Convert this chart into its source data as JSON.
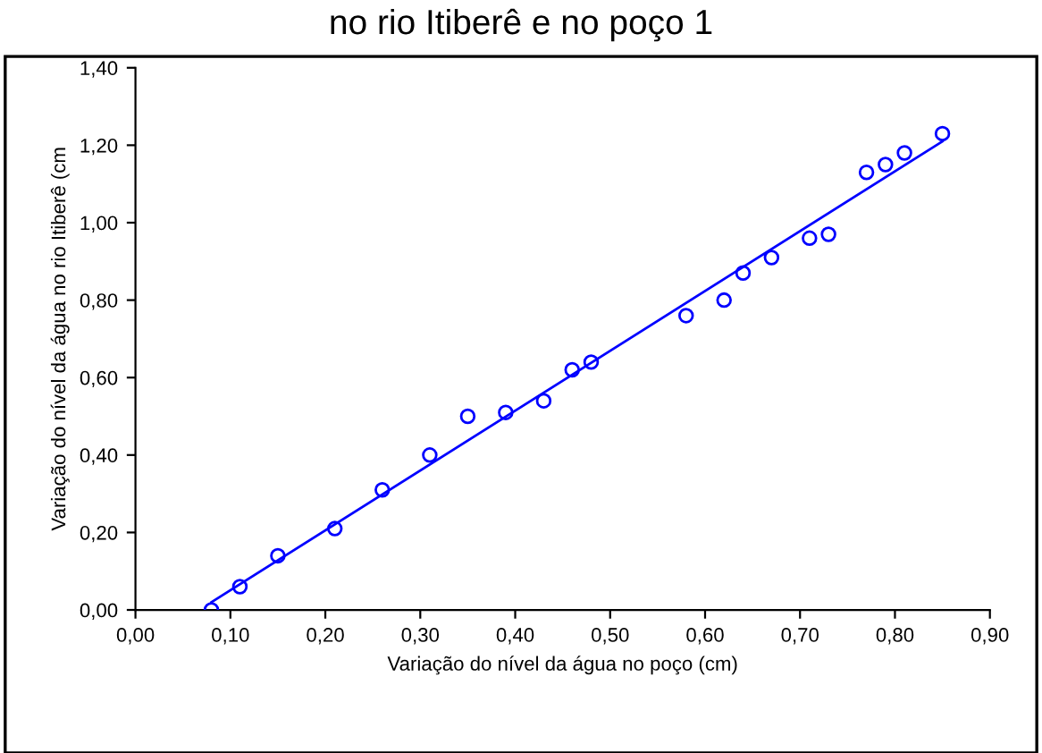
{
  "chart_data": {
    "type": "scatter",
    "title": "no rio Itiberê e no poço 1",
    "xlabel": "Variação do nível da água no poço (cm)",
    "ylabel": "Variação do nível da água no rio Itiberê (cm",
    "grid": false,
    "legend": false,
    "xlim": [
      0,
      0.9
    ],
    "ylim": [
      0,
      1.4
    ],
    "xticks": [
      {
        "value": 0,
        "label": "0,00"
      },
      {
        "value": 0.1,
        "label": "0,10"
      },
      {
        "value": 0.2,
        "label": "0,20"
      },
      {
        "value": 0.3,
        "label": "0,30"
      },
      {
        "value": 0.4,
        "label": "0,40"
      },
      {
        "value": 0.5,
        "label": "0,50"
      },
      {
        "value": 0.6,
        "label": "0,60"
      },
      {
        "value": 0.7,
        "label": "0,70"
      },
      {
        "value": 0.8,
        "label": "0,80"
      },
      {
        "value": 0.9,
        "label": "0,90"
      }
    ],
    "yticks": [
      {
        "value": 0,
        "label": "0,00"
      },
      {
        "value": 0.2,
        "label": "0,20"
      },
      {
        "value": 0.4,
        "label": "0,40"
      },
      {
        "value": 0.6,
        "label": "0,60"
      },
      {
        "value": 0.8,
        "label": "0,80"
      },
      {
        "value": 1.0,
        "label": "1,00"
      },
      {
        "value": 1.2,
        "label": "1,20"
      },
      {
        "value": 1.4,
        "label": "1,40"
      }
    ],
    "series": [
      {
        "marker": "circle",
        "color": "#0000ff",
        "x": [
          0.08,
          0.11,
          0.15,
          0.21,
          0.26,
          0.31,
          0.35,
          0.39,
          0.43,
          0.46,
          0.48,
          0.58,
          0.62,
          0.64,
          0.67,
          0.71,
          0.73,
          0.77,
          0.79,
          0.81,
          0.85
        ],
        "values": [
          0.0,
          0.06,
          0.14,
          0.21,
          0.31,
          0.4,
          0.5,
          0.51,
          0.54,
          0.62,
          0.64,
          0.76,
          0.8,
          0.87,
          0.91,
          0.96,
          0.97,
          1.13,
          1.15,
          1.18,
          1.23
        ]
      },
      {
        "type": "line",
        "marker": "none",
        "color": "#0000ff",
        "x": [
          0.08,
          0.85
        ],
        "values": [
          0.02,
          1.21
        ]
      }
    ]
  }
}
